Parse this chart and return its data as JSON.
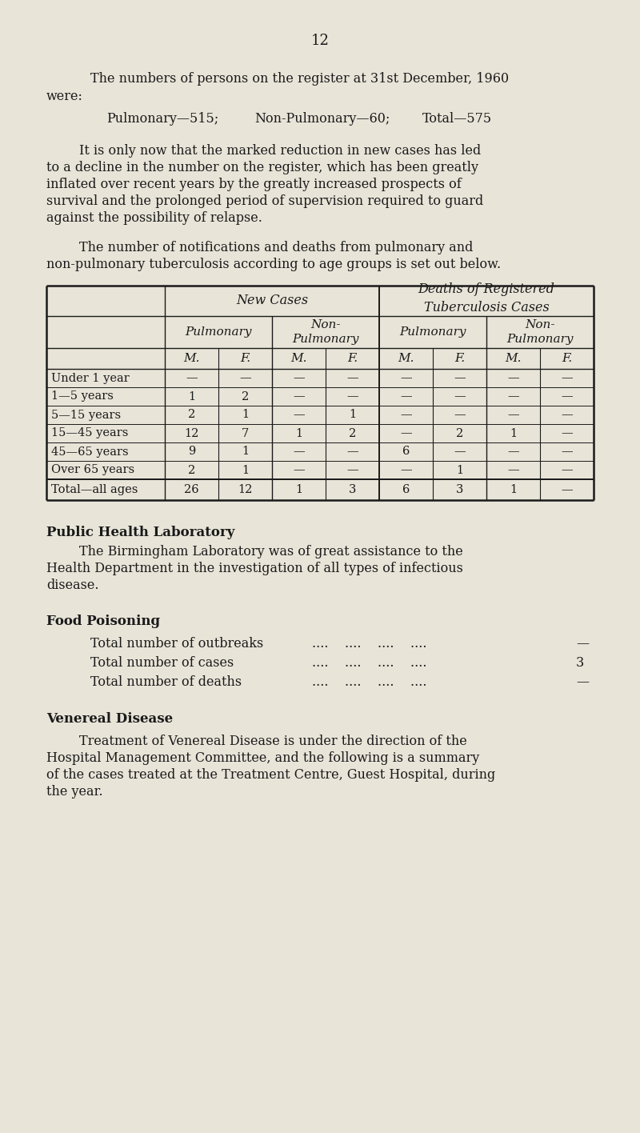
{
  "bg_color": "#e8e4d8",
  "text_color": "#1a1a1a",
  "page_number": "12",
  "table_header3": [
    "M.",
    "F.",
    "M.",
    "F.",
    "M.",
    "F.",
    "M.",
    "F."
  ],
  "table_rows": [
    [
      "Under 1 year",
      "—",
      "—",
      "—",
      "—",
      "—",
      "—",
      "—",
      "—"
    ],
    [
      "1—5 years",
      "1",
      "2",
      "—",
      "—",
      "—",
      "—",
      "—",
      "—"
    ],
    [
      "5—15 years",
      "2",
      "1",
      "—",
      "1",
      "—",
      "—",
      "—",
      "—"
    ],
    [
      "15—45 years",
      "12",
      "7",
      "1",
      "2",
      "—",
      "2",
      "1",
      "—"
    ],
    [
      "45—65 years",
      "9",
      "1",
      "—",
      "—",
      "6",
      "—",
      "—",
      "—"
    ],
    [
      "Over 65 years",
      "2",
      "1",
      "—",
      "—",
      "—",
      "1",
      "—",
      "—"
    ]
  ],
  "table_total": [
    "Total—all ages",
    "26",
    "12",
    "1",
    "3",
    "6",
    "3",
    "1",
    "—"
  ],
  "section1_title": "Public Health Laboratory",
  "section2_title": "Food Poisoning",
  "food_items": [
    [
      "Total number of outbreaks",
      "—"
    ],
    [
      "Total number of cases",
      "3"
    ],
    [
      "Total number of deaths",
      "—"
    ]
  ],
  "section3_title": "Venereal Disease"
}
